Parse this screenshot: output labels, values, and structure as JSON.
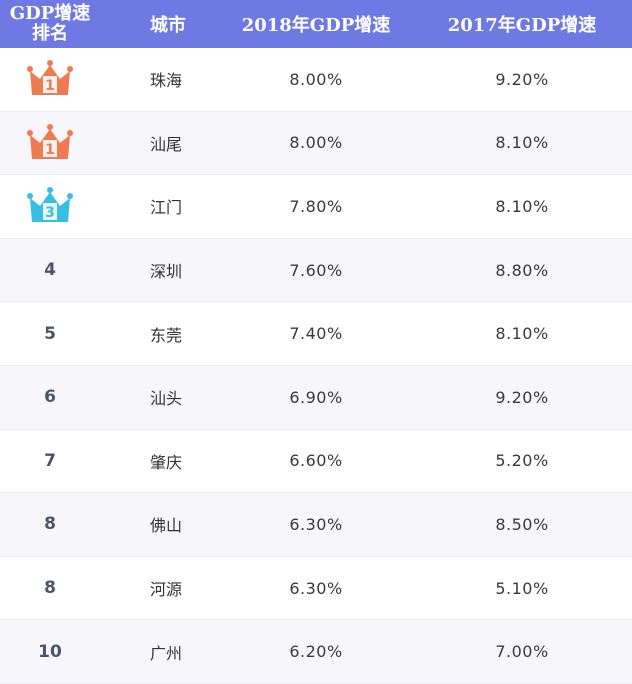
{
  "colors": {
    "header_bg": "#6e79e3",
    "crown_orange": "#f07a52",
    "crown_teal": "#36bfe3"
  },
  "headers": {
    "rank_line1": "GDP增速",
    "rank_line2": "排名",
    "city": "城市",
    "gdp2018": "2018年GDP增速",
    "gdp2017": "2017年GDP增速"
  },
  "rows": [
    {
      "rank": "1",
      "crown": "orange",
      "city": "珠海",
      "gdp2018": "8.00%",
      "gdp2017": "9.20%"
    },
    {
      "rank": "1",
      "crown": "orange",
      "city": "汕尾",
      "gdp2018": "8.00%",
      "gdp2017": "8.10%"
    },
    {
      "rank": "3",
      "crown": "teal",
      "city": "江门",
      "gdp2018": "7.80%",
      "gdp2017": "8.10%"
    },
    {
      "rank": "4",
      "crown": "",
      "city": "深圳",
      "gdp2018": "7.60%",
      "gdp2017": "8.80%"
    },
    {
      "rank": "5",
      "crown": "",
      "city": "东莞",
      "gdp2018": "7.40%",
      "gdp2017": "8.10%"
    },
    {
      "rank": "6",
      "crown": "",
      "city": "汕头",
      "gdp2018": "6.90%",
      "gdp2017": "9.20%"
    },
    {
      "rank": "7",
      "crown": "",
      "city": "肇庆",
      "gdp2018": "6.60%",
      "gdp2017": "5.20%"
    },
    {
      "rank": "8",
      "crown": "",
      "city": "佛山",
      "gdp2018": "6.30%",
      "gdp2017": "8.50%"
    },
    {
      "rank": "8",
      "crown": "",
      "city": "河源",
      "gdp2018": "6.30%",
      "gdp2017": "5.10%"
    },
    {
      "rank": "10",
      "crown": "",
      "city": "广州",
      "gdp2018": "6.20%",
      "gdp2017": "7.00%"
    }
  ]
}
